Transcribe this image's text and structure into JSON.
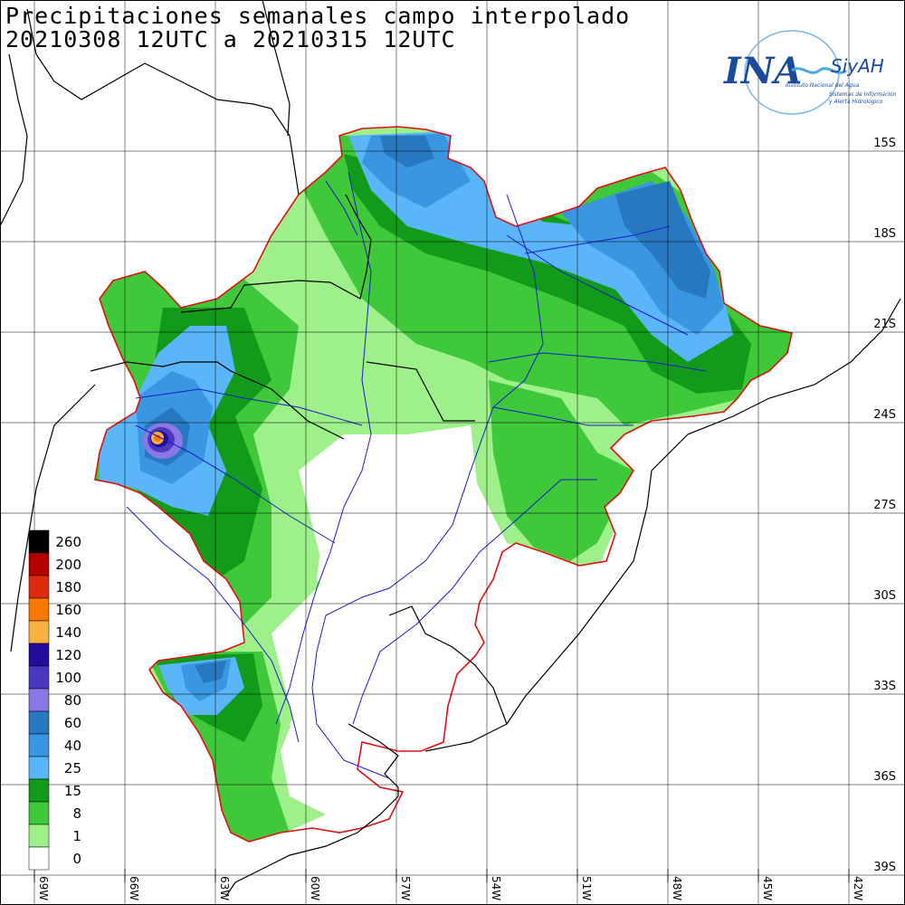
{
  "title": {
    "line1": "Precipitaciones semanales campo interpolado",
    "line2": "20210308 12UTC a 20210315 12UTC"
  },
  "logo": {
    "main": "INA",
    "brand": "SiyAH",
    "sub1": "Instituto Nacional del Agua",
    "sub2": "Sistemas de Información",
    "sub3": "y Alerta Hidrológico"
  },
  "colors": {
    "border": "#e01010",
    "river": "#1a1acc",
    "coast": "#000000",
    "c0": "#ffffff",
    "c1": "#9ef08a",
    "c8": "#3ec83a",
    "c15": "#129a1a",
    "c25": "#5ab6f8",
    "c40": "#3a96e0",
    "c60": "#2878c0",
    "c80": "#8a78e6",
    "c100": "#4a38c0",
    "c120": "#220c9a",
    "c140": "#f8b040",
    "c160": "#f87800",
    "c180": "#e02a10",
    "c200": "#b40000",
    "c260": "#000000"
  },
  "legend": [
    {
      "label": "260",
      "color": "#000000"
    },
    {
      "label": "200",
      "color": "#b40000"
    },
    {
      "label": "180",
      "color": "#e02a10"
    },
    {
      "label": "160",
      "color": "#f87800"
    },
    {
      "label": "140",
      "color": "#f8b040"
    },
    {
      "label": "120",
      "color": "#220c9a"
    },
    {
      "label": "100",
      "color": "#4a38c0"
    },
    {
      "label": "80",
      "color": "#8a78e6"
    },
    {
      "label": "60",
      "color": "#2878c0"
    },
    {
      "label": "40",
      "color": "#3a96e0"
    },
    {
      "label": "25",
      "color": "#5ab6f8"
    },
    {
      "label": "15",
      "color": "#129a1a"
    },
    {
      "label": "8",
      "color": "#3ec83a"
    },
    {
      "label": "1",
      "color": "#9ef08a"
    },
    {
      "label": "0",
      "color": "#ffffff"
    }
  ],
  "lat_labels": [
    "15S",
    "18S",
    "21S",
    "24S",
    "27S",
    "30S",
    "33S",
    "36S",
    "39S"
  ],
  "lon_labels": [
    "69W",
    "66W",
    "63W",
    "60W",
    "57W",
    "54W",
    "51W",
    "48W",
    "45W",
    "42W"
  ]
}
